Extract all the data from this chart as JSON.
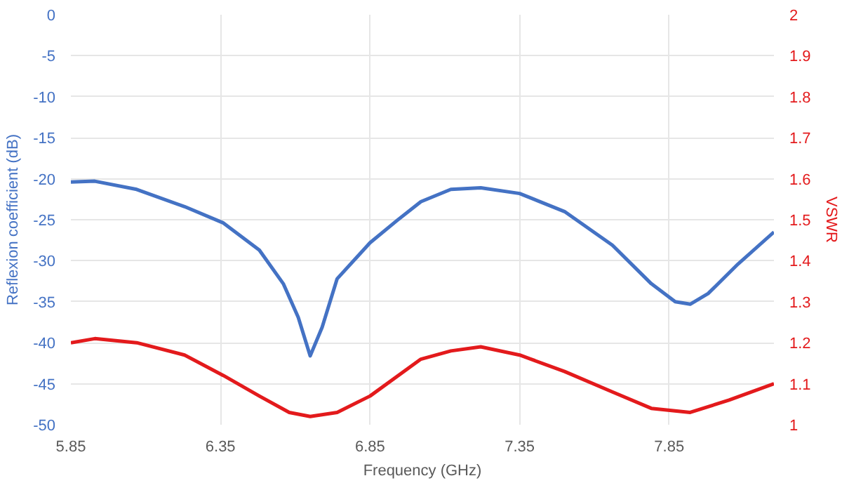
{
  "chart_data": {
    "type": "line",
    "xlabel": "Frequency (GHz)",
    "ylabel": "Reflexion coefficient (dB)",
    "y2label": "VSWR",
    "xlim": [
      5.85,
      8.2
    ],
    "xticks": [
      5.85,
      6.35,
      6.85,
      7.35,
      7.85
    ],
    "ylim": [
      -50,
      0
    ],
    "yticks": [
      -50,
      -45,
      -40,
      -35,
      -30,
      -25,
      -20,
      -15,
      -10,
      -5,
      0
    ],
    "y2lim": [
      1,
      2
    ],
    "y2ticks": [
      1,
      1.1,
      1.2,
      1.3,
      1.4,
      1.5,
      1.6,
      1.7,
      1.8,
      1.9,
      2
    ],
    "grid": true,
    "marker": "none",
    "line_style": "solid",
    "series": [
      {
        "color": "#4472c4",
        "x": [
          5.85,
          5.93,
          6.07,
          6.23,
          6.36,
          6.48,
          6.56,
          6.61,
          6.65,
          6.69,
          6.74,
          6.85,
          6.94,
          7.02,
          7.12,
          7.22,
          7.35,
          7.5,
          7.66,
          7.79,
          7.87,
          7.92,
          7.98,
          8.08,
          8.2
        ],
        "values": [
          -20.4,
          -20.3,
          -21.3,
          -23.4,
          -25.4,
          -28.7,
          -32.8,
          -36.9,
          -41.6,
          -38.1,
          -32.2,
          -27.8,
          -25.1,
          -22.8,
          -21.3,
          -21.1,
          -21.8,
          -24.0,
          -28.1,
          -32.8,
          -35.0,
          -35.3,
          -34.0,
          -30.4,
          -26.5
        ]
      },
      {
        "color": "#e31a1c",
        "axis": "y2",
        "x": [
          5.85,
          5.93,
          6.07,
          6.23,
          6.36,
          6.48,
          6.58,
          6.65,
          6.74,
          6.85,
          7.02,
          7.12,
          7.22,
          7.35,
          7.5,
          7.66,
          7.79,
          7.92,
          8.05,
          8.2
        ],
        "values": [
          1.2,
          1.21,
          1.2,
          1.17,
          1.12,
          1.07,
          1.03,
          1.02,
          1.03,
          1.07,
          1.16,
          1.18,
          1.19,
          1.17,
          1.13,
          1.08,
          1.04,
          1.03,
          1.06,
          1.1
        ]
      }
    ]
  }
}
